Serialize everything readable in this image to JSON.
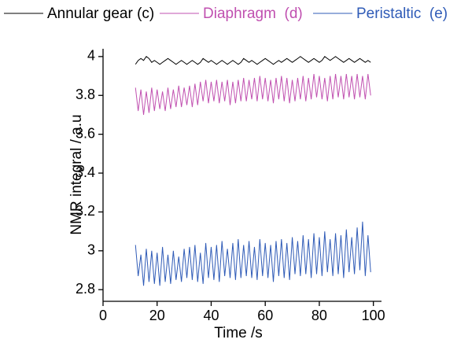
{
  "chart_data": {
    "type": "line",
    "x_label": "Time /s",
    "y_label": "NMR integral / a.u",
    "xlim": [
      0,
      103
    ],
    "ylim": [
      2.74,
      4.04
    ],
    "xticks": [
      0,
      20,
      40,
      60,
      80,
      100
    ],
    "yticks": [
      2.8,
      3,
      3.2,
      3.4,
      3.6,
      3.8,
      4
    ],
    "x": [
      12,
      13,
      14,
      15,
      16,
      17,
      18,
      19,
      20,
      21,
      22,
      23,
      24,
      25,
      26,
      27,
      28,
      29,
      30,
      31,
      32,
      33,
      34,
      35,
      36,
      37,
      38,
      39,
      40,
      41,
      42,
      43,
      44,
      45,
      46,
      47,
      48,
      49,
      50,
      51,
      52,
      53,
      54,
      55,
      56,
      57,
      58,
      59,
      60,
      61,
      62,
      63,
      64,
      65,
      66,
      67,
      68,
      69,
      70,
      71,
      72,
      73,
      74,
      75,
      76,
      77,
      78,
      79,
      80,
      81,
      82,
      83,
      84,
      85,
      86,
      87,
      88,
      89,
      90,
      91,
      92,
      93,
      94,
      95,
      96,
      97,
      98,
      99
    ],
    "series": [
      {
        "name": "Annular gear (c)",
        "color": "#000000",
        "values": [
          3.96,
          3.98,
          3.99,
          3.98,
          4.0,
          3.99,
          3.97,
          3.98,
          3.97,
          3.96,
          3.97,
          3.98,
          3.99,
          3.98,
          3.97,
          3.96,
          3.97,
          3.98,
          3.97,
          3.96,
          3.97,
          3.98,
          3.97,
          3.96,
          3.97,
          3.99,
          3.98,
          3.97,
          3.98,
          3.97,
          3.96,
          3.97,
          3.98,
          3.97,
          3.96,
          3.97,
          3.98,
          3.97,
          3.96,
          3.97,
          3.99,
          3.98,
          3.97,
          3.98,
          3.97,
          3.96,
          3.97,
          3.98,
          3.99,
          3.98,
          3.97,
          3.96,
          3.97,
          3.98,
          3.97,
          3.98,
          3.99,
          3.98,
          3.97,
          3.98,
          3.99,
          4.0,
          3.99,
          3.98,
          3.97,
          3.98,
          3.99,
          3.98,
          3.97,
          3.98,
          4.0,
          3.99,
          3.98,
          3.99,
          4.0,
          3.99,
          3.98,
          3.97,
          3.98,
          3.99,
          3.98,
          3.97,
          3.98,
          3.99,
          3.98,
          3.97,
          3.98,
          3.97
        ]
      },
      {
        "name": "Diaphragm  (d)",
        "color": "#c050b0",
        "values": [
          3.84,
          3.72,
          3.83,
          3.7,
          3.82,
          3.71,
          3.84,
          3.72,
          3.83,
          3.73,
          3.82,
          3.72,
          3.84,
          3.73,
          3.83,
          3.74,
          3.85,
          3.74,
          3.84,
          3.75,
          3.85,
          3.74,
          3.86,
          3.75,
          3.87,
          3.77,
          3.88,
          3.76,
          3.87,
          3.77,
          3.88,
          3.76,
          3.87,
          3.77,
          3.88,
          3.75,
          3.87,
          3.76,
          3.88,
          3.77,
          3.89,
          3.77,
          3.88,
          3.78,
          3.89,
          3.77,
          3.9,
          3.78,
          3.89,
          3.77,
          3.88,
          3.76,
          3.89,
          3.78,
          3.9,
          3.77,
          3.89,
          3.76,
          3.88,
          3.77,
          3.89,
          3.78,
          3.9,
          3.77,
          3.89,
          3.78,
          3.91,
          3.79,
          3.9,
          3.78,
          3.89,
          3.77,
          3.9,
          3.78,
          3.91,
          3.79,
          3.9,
          3.78,
          3.91,
          3.79,
          3.9,
          3.78,
          3.91,
          3.79,
          3.9,
          3.78,
          3.91,
          3.8
        ]
      },
      {
        "name": "Peristaltic  (e)",
        "color": "#2f5bb7",
        "values": [
          3.03,
          2.87,
          2.98,
          2.82,
          3.01,
          2.84,
          3.0,
          2.83,
          2.99,
          2.82,
          3.02,
          2.84,
          2.98,
          2.83,
          3.0,
          2.85,
          2.97,
          2.84,
          3.01,
          2.86,
          3.02,
          2.85,
          3.03,
          2.84,
          2.99,
          2.83,
          3.04,
          2.86,
          3.02,
          2.85,
          3.03,
          2.84,
          3.05,
          2.87,
          3.01,
          2.86,
          3.04,
          2.85,
          3.06,
          2.86,
          3.03,
          2.87,
          3.05,
          2.86,
          3.02,
          2.85,
          3.06,
          2.87,
          3.04,
          2.86,
          3.03,
          2.84,
          3.05,
          2.87,
          3.06,
          2.86,
          3.04,
          2.85,
          3.07,
          2.88,
          3.05,
          2.87,
          3.08,
          2.88,
          3.06,
          2.86,
          3.09,
          2.88,
          3.07,
          2.87,
          3.1,
          2.89,
          3.06,
          2.87,
          3.09,
          2.88,
          3.08,
          2.86,
          3.11,
          2.89,
          3.07,
          2.88,
          3.12,
          2.9,
          3.15,
          2.87,
          3.08,
          2.89
        ]
      }
    ]
  }
}
